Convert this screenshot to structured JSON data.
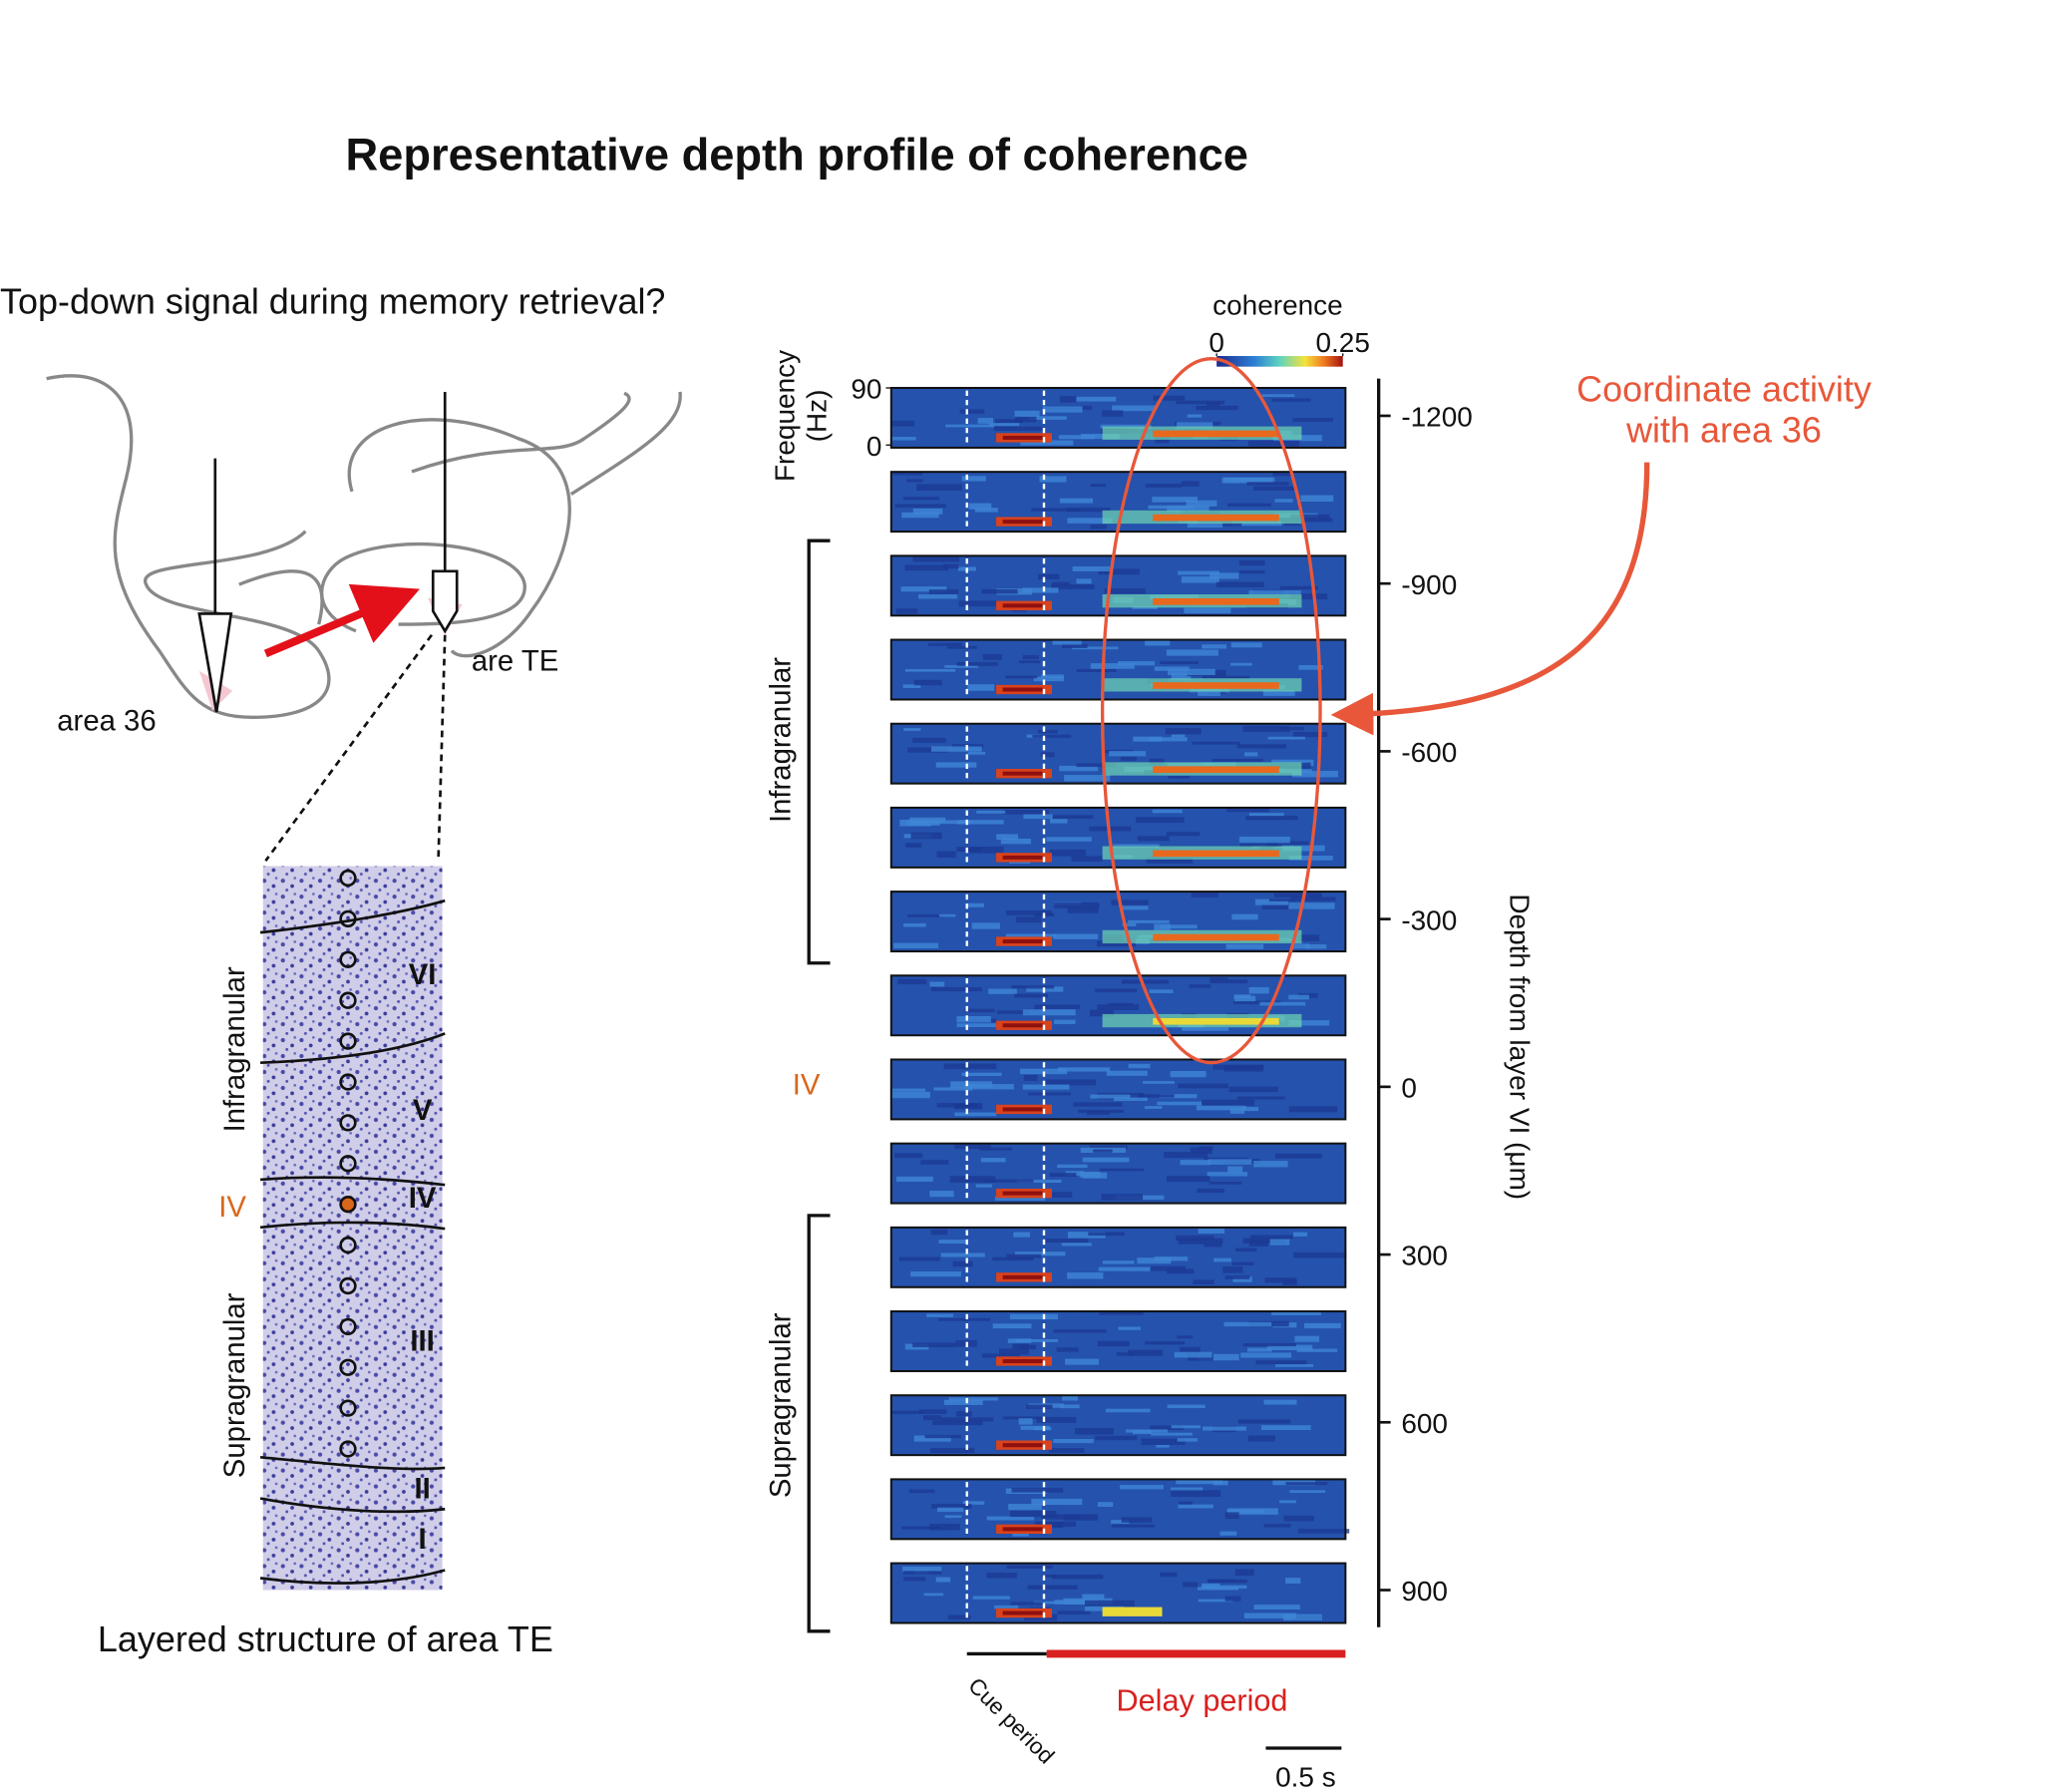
{
  "title": "Representative depth profile of coherence",
  "question": "Top-down signal during memory retrieval?",
  "schematic": {
    "area36": "area 36",
    "areaTE": "are TE"
  },
  "histology": {
    "layers": [
      "VI",
      "V",
      "IV",
      "III",
      "II",
      "I"
    ],
    "infragranular": "Infragranular",
    "iv": "IV",
    "supragranular": "Supragranular",
    "caption": "Layered structure of area TE"
  },
  "colorbar": {
    "label": "coherence",
    "ticks": [
      0,
      0.25
    ]
  },
  "frequency_axis": {
    "label": [
      "Frequency",
      "(Hz)"
    ],
    "ticks": [
      90,
      0
    ]
  },
  "groups": {
    "infragranular": "Infragranular",
    "iv": "IV",
    "supragranular": "Supragranular"
  },
  "depth_axis": {
    "label": "Depth from layer VI (μm)",
    "lim": [
      -1200,
      900
    ],
    "ticks": [
      -1200,
      -900,
      -600,
      -300,
      0,
      300,
      600,
      900
    ]
  },
  "annotation": [
    "Coordinate activity",
    "with area 36"
  ],
  "timeline": {
    "cue": "Cue period",
    "delay": "Delay period",
    "scale": "0.5 s"
  }
}
